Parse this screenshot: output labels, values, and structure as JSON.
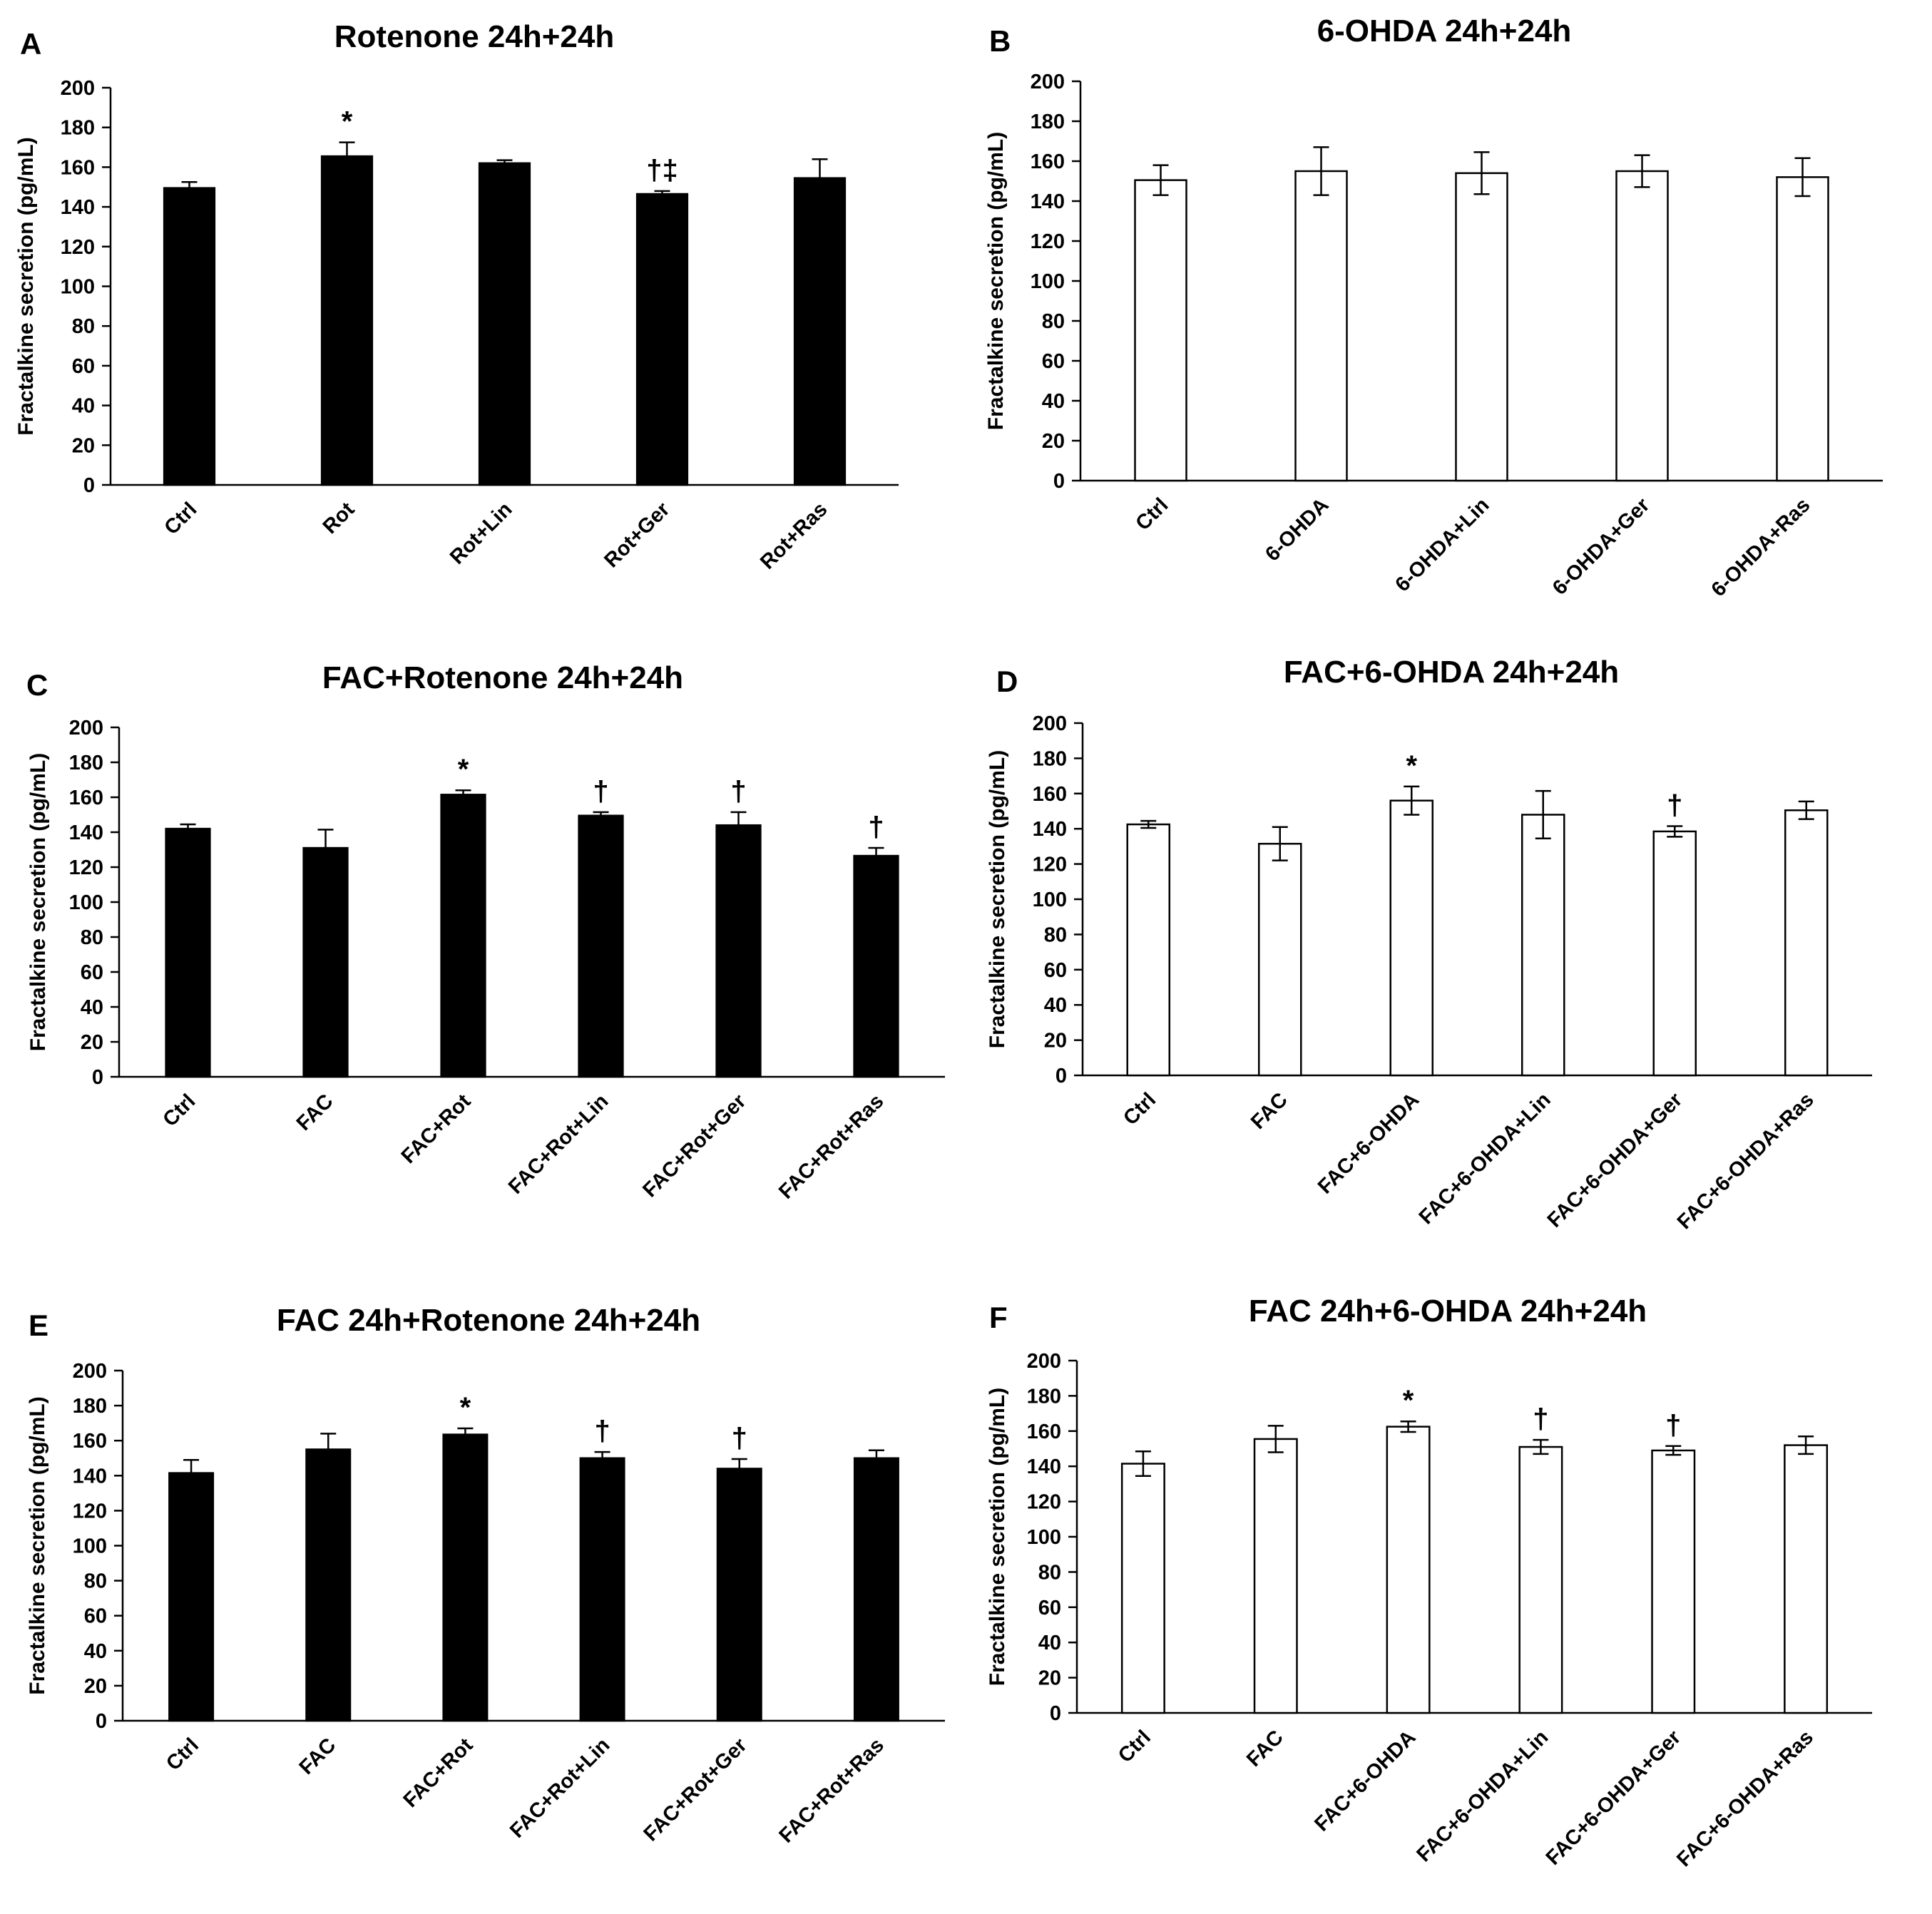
{
  "figure_caption": "",
  "chart_data": [
    {
      "panel": "A",
      "type": "bar",
      "title": "Rotenone 24h+24h",
      "xlabel": "",
      "ylabel": "Fractalkine secretion (pg/mL)",
      "ylim": [
        0,
        200
      ],
      "yticks": [
        "0",
        "20",
        "40",
        "60",
        "80",
        "100",
        "120",
        "140",
        "160",
        "180",
        "200"
      ],
      "fill": "#000000",
      "categories": [
        "Ctrl",
        "Rot",
        "Rot+Lin",
        "Rot+Ger",
        "Rot+Ras"
      ],
      "values": [
        149.5,
        165.5,
        162,
        146.5,
        154.5
      ],
      "errors": [
        3,
        7,
        1.5,
        1.5,
        9.5
      ],
      "error_style": "up",
      "annotations": [
        "",
        "*",
        "",
        "†‡",
        ""
      ]
    },
    {
      "panel": "B",
      "type": "bar",
      "title": "6-OHDA 24h+24h",
      "xlabel": "",
      "ylabel": "Fractalkine secretion (pg/mL)",
      "ylim": [
        0,
        200
      ],
      "yticks": [
        "0",
        "20",
        "40",
        "60",
        "80",
        "100",
        "120",
        "140",
        "160",
        "180",
        "200"
      ],
      "fill": "#ffffff",
      "categories": [
        "Ctrl",
        "6-OHDA",
        "6-OHDA+Lin",
        "6-OHDA+Ger",
        "6-OHDA+Ras"
      ],
      "values": [
        150.5,
        155,
        154,
        155,
        152
      ],
      "errors": [
        7.5,
        12,
        10.5,
        8,
        9.5
      ],
      "error_style": "both",
      "annotations": [
        "",
        "",
        "",
        "",
        ""
      ]
    },
    {
      "panel": "C",
      "type": "bar",
      "title": "FAC+Rotenone 24h+24h",
      "xlabel": "",
      "ylabel": "Fractalkine secretion (pg/mL)",
      "ylim": [
        0,
        200
      ],
      "yticks": [
        "0",
        "20",
        "40",
        "60",
        "80",
        "100",
        "120",
        "140",
        "160",
        "180",
        "200"
      ],
      "fill": "#000000",
      "categories": [
        "Ctrl",
        "FAC",
        "FAC+Rot",
        "FAC+Rot+Lin",
        "FAC+Rot+Ger",
        "FAC+Rot+Ras"
      ],
      "values": [
        142,
        131,
        161.5,
        149.5,
        144,
        126.5
      ],
      "errors": [
        2.5,
        10.5,
        2.5,
        2,
        7.5,
        4.5
      ],
      "error_style": "up",
      "annotations": [
        "",
        "",
        "*",
        "†",
        "†",
        "†"
      ]
    },
    {
      "panel": "D",
      "type": "bar",
      "title": "FAC+6-OHDA 24h+24h",
      "xlabel": "",
      "ylabel": "Fractalkine secretion (pg/mL)",
      "ylim": [
        0,
        200
      ],
      "yticks": [
        "0",
        "20",
        "40",
        "60",
        "80",
        "100",
        "120",
        "140",
        "160",
        "180",
        "200"
      ],
      "fill": "#ffffff",
      "categories": [
        "Ctrl",
        "FAC",
        "FAC+6-OHDA",
        "FAC+6-OHDA+Lin",
        "FAC+6-OHDA+Ger",
        "FAC+6-OHDA+Ras"
      ],
      "values": [
        142.5,
        131.5,
        156,
        148,
        138.5,
        150.5
      ],
      "errors": [
        2,
        9.5,
        8,
        13.5,
        3,
        5
      ],
      "error_style": "both",
      "annotations": [
        "",
        "",
        "*",
        "",
        "†",
        ""
      ]
    },
    {
      "panel": "E",
      "type": "bar",
      "title": "FAC 24h+Rotenone 24h+24h",
      "xlabel": "",
      "ylabel": "Fractalkine secretion (pg/mL)",
      "ylim": [
        0,
        200
      ],
      "yticks": [
        "0",
        "20",
        "40",
        "60",
        "80",
        "100",
        "120",
        "140",
        "160",
        "180",
        "200"
      ],
      "fill": "#000000",
      "categories": [
        "Ctrl",
        "FAC",
        "FAC+Rot",
        "FAC+Rot+Lin",
        "FAC+Rot+Ger",
        "FAC+Rot+Ras"
      ],
      "values": [
        141.5,
        155,
        163.5,
        150,
        144,
        150
      ],
      "errors": [
        7.5,
        9,
        3.5,
        3.5,
        5.5,
        4.5
      ],
      "error_style": "up",
      "annotations": [
        "",
        "",
        "*",
        "†",
        "†",
        ""
      ]
    },
    {
      "panel": "F",
      "type": "bar",
      "title": "FAC 24h+6-OHDA 24h+24h",
      "xlabel": "",
      "ylabel": "Fractalkine secretion (pg/mL)",
      "ylim": [
        0,
        200
      ],
      "yticks": [
        "0",
        "20",
        "40",
        "60",
        "80",
        "100",
        "120",
        "140",
        "160",
        "180",
        "200"
      ],
      "fill": "#ffffff",
      "categories": [
        "Ctrl",
        "FAC",
        "FAC+6-OHDA",
        "FAC+6-OHDA+Lin",
        "FAC+6-OHDA+Ger",
        "FAC+6-OHDA+Ras"
      ],
      "values": [
        141.5,
        155.5,
        162.5,
        151,
        149,
        152
      ],
      "errors": [
        7,
        7.5,
        3,
        4,
        2.5,
        5
      ],
      "error_style": "both",
      "annotations": [
        "",
        "",
        "*",
        "†",
        "†",
        ""
      ]
    }
  ]
}
